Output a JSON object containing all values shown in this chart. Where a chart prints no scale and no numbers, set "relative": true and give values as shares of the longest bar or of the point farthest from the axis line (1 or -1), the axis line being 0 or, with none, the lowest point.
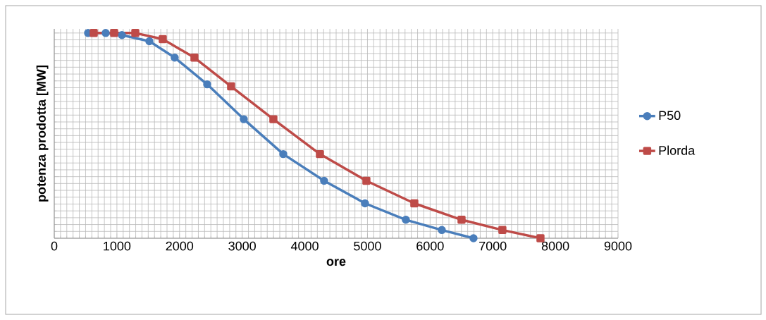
{
  "chart_data": {
    "type": "line",
    "xlabel": "ore",
    "ylabel": "potenza prodotta [MW]",
    "relative": true,
    "xlim": [
      0,
      9000
    ],
    "xticks": [
      0,
      1000,
      2000,
      3000,
      4000,
      5000,
      6000,
      7000,
      8000,
      9000
    ],
    "grid": true,
    "legend": "right",
    "line_style": "solid",
    "series": [
      {
        "name": "P50",
        "color": "#4a7ebb",
        "marker": "circle",
        "x": [
          540,
          821,
          1080,
          1519,
          1923,
          2441,
          3026,
          3656,
          4308,
          4961,
          5613,
          6187,
          6693
        ],
        "values": [
          1.0,
          1.0,
          0.99,
          0.96,
          0.88,
          0.75,
          0.58,
          0.41,
          0.28,
          0.17,
          0.09,
          0.04,
          0.0
        ]
      },
      {
        "name": "Plorda",
        "color": "#be4b48",
        "marker": "square",
        "x": [
          630,
          956,
          1294,
          1732,
          2238,
          2823,
          3498,
          4241,
          4983,
          5748,
          6502,
          7154,
          7762
        ],
        "values": [
          1.0,
          1.0,
          1.0,
          0.97,
          0.88,
          0.74,
          0.58,
          0.41,
          0.28,
          0.17,
          0.09,
          0.04,
          0.0
        ]
      }
    ]
  }
}
